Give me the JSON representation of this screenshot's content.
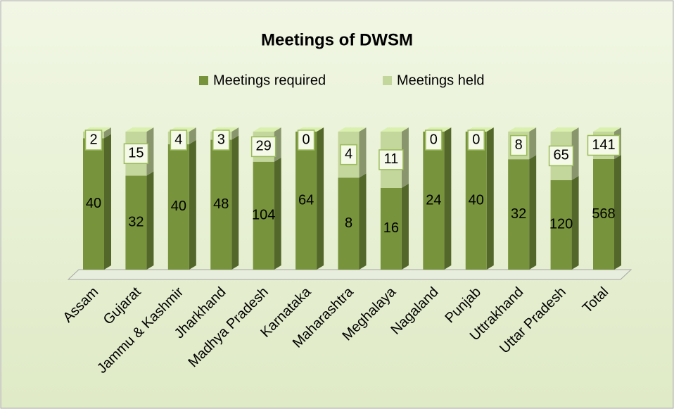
{
  "chart_data": {
    "type": "bar",
    "stacked": "percent",
    "title": "Meetings of DWSM",
    "categories": [
      "Assam",
      "Gujarat",
      "Jammu & Kashmir",
      "Jharkhand",
      "Madhya Pradesh",
      "Karnataka",
      "Maharashtra",
      "Meghalaya",
      "Nagaland",
      "Punjab",
      "Uttrakhand",
      "Uttar Pradesh",
      "Total"
    ],
    "series": [
      {
        "name": "Meetings required",
        "color": "#77933c",
        "values": [
          40,
          32,
          40,
          48,
          104,
          64,
          8,
          16,
          24,
          40,
          32,
          120,
          568
        ]
      },
      {
        "name": "Meetings held",
        "color": "#c3d69b",
        "values": [
          2,
          15,
          4,
          3,
          29,
          0,
          4,
          11,
          0,
          0,
          8,
          65,
          141
        ]
      }
    ],
    "legend": "top"
  }
}
